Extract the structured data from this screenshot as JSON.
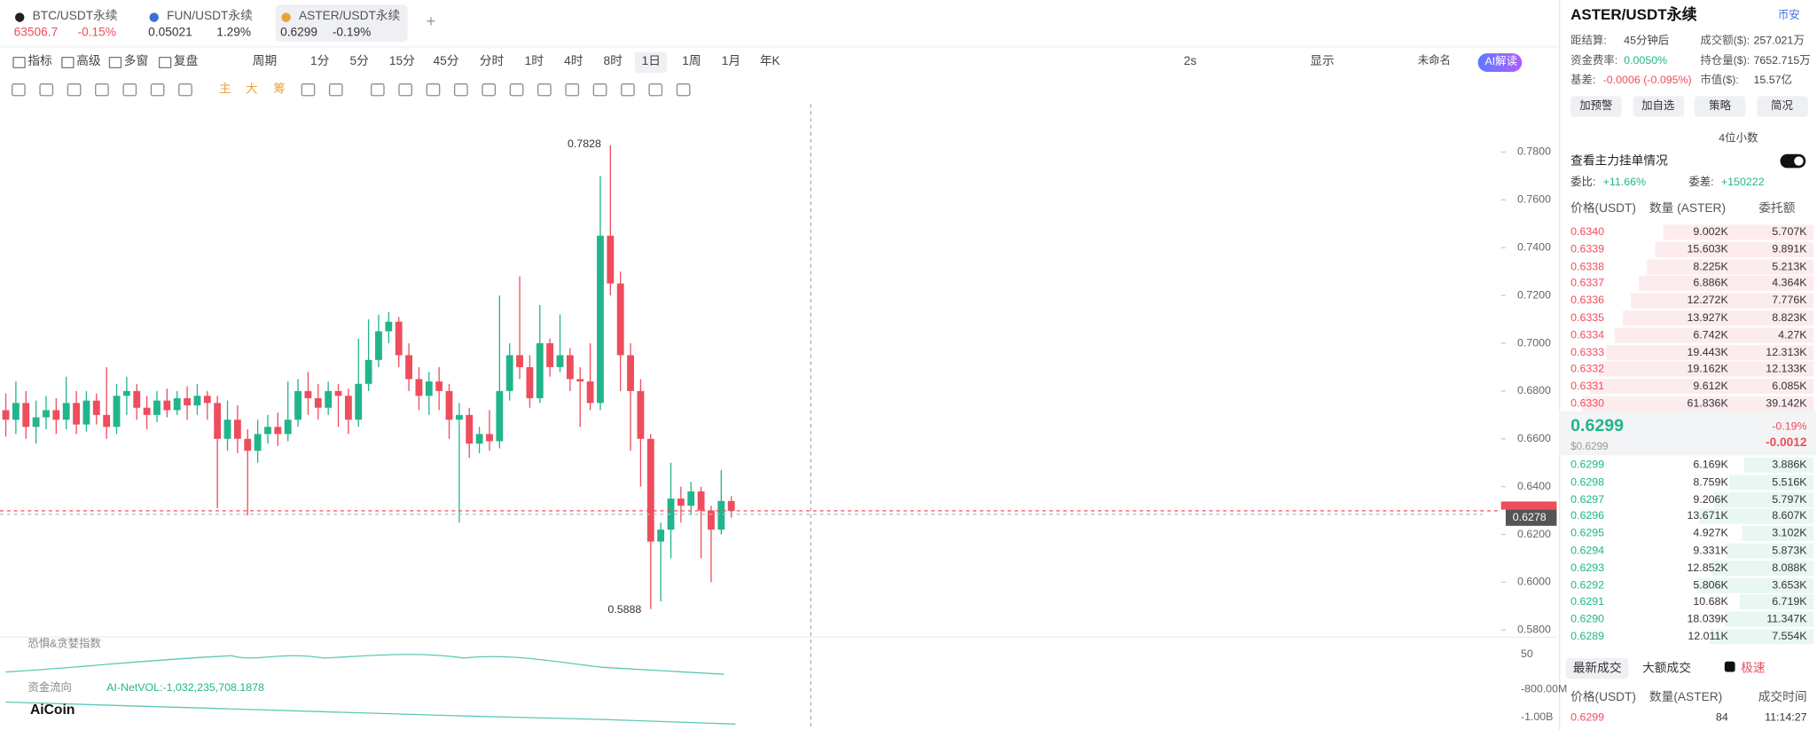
{
  "tabs": [
    {
      "symbol": "BTC/USDT永续",
      "price": "63506.7",
      "change": "-0.15%"
    },
    {
      "symbol": "FUN/USDT永续",
      "price": "0.05021",
      "change": "1.29%"
    },
    {
      "symbol": "ASTER/USDT永续",
      "price": "0.6299",
      "change": "-0.19%"
    }
  ],
  "toolbar": {
    "left": [
      "指标",
      "高级",
      "多窗",
      "复盘"
    ],
    "intervals": [
      "周期",
      "1分",
      "5分",
      "15分",
      "45分",
      "分时",
      "1时",
      "4时",
      "8时",
      "1日",
      "1周",
      "1月",
      "年K"
    ],
    "refresh": "2s",
    "display": "显示",
    "layout": "未命名",
    "ai": "AI解读",
    "overlays": [
      "主",
      "大",
      "筹"
    ]
  },
  "chart_data": {
    "type": "candlestick",
    "up_color": "#22b58b",
    "down_color": "#ee4d5d",
    "open": [
      0.672,
      0.668,
      0.675,
      0.665,
      0.669,
      0.672,
      0.668,
      0.675,
      0.666,
      0.676,
      0.67,
      0.665,
      0.678,
      0.68,
      0.673,
      0.67,
      0.676,
      0.672,
      0.677,
      0.674,
      0.678,
      0.675,
      0.66,
      0.668,
      0.66,
      0.655,
      0.662,
      0.665,
      0.662,
      0.668,
      0.68,
      0.677,
      0.673,
      0.68,
      0.678,
      0.668,
      0.683,
      0.693,
      0.705,
      0.709,
      0.695,
      0.685,
      0.678,
      0.684,
      0.68,
      0.668,
      0.67,
      0.658,
      0.662,
      0.659,
      0.68,
      0.695,
      0.69,
      0.677,
      0.7,
      0.69,
      0.695,
      0.685,
      0.684,
      0.675,
      0.745,
      0.725,
      0.695,
      0.68,
      0.66,
      0.617,
      0.622,
      0.635,
      0.632,
      0.638,
      0.63,
      0.622,
      0.634
    ],
    "high": [
      0.679,
      0.684,
      0.68,
      0.676,
      0.678,
      0.677,
      0.686,
      0.68,
      0.68,
      0.679,
      0.69,
      0.683,
      0.686,
      0.683,
      0.678,
      0.68,
      0.681,
      0.68,
      0.682,
      0.683,
      0.68,
      0.678,
      0.676,
      0.674,
      0.664,
      0.668,
      0.67,
      0.671,
      0.684,
      0.685,
      0.688,
      0.683,
      0.684,
      0.683,
      0.681,
      0.702,
      0.71,
      0.712,
      0.713,
      0.711,
      0.7,
      0.69,
      0.688,
      0.69,
      0.683,
      0.675,
      0.673,
      0.665,
      0.672,
      0.72,
      0.7,
      0.728,
      0.695,
      0.716,
      0.702,
      0.712,
      0.698,
      0.69,
      0.7,
      0.77,
      0.7828,
      0.73,
      0.7,
      0.685,
      0.662,
      0.625,
      0.65,
      0.64,
      0.642,
      0.64,
      0.632,
      0.647,
      0.636
    ],
    "low": [
      0.661,
      0.662,
      0.66,
      0.658,
      0.664,
      0.662,
      0.664,
      0.662,
      0.663,
      0.666,
      0.66,
      0.662,
      0.67,
      0.668,
      0.664,
      0.667,
      0.669,
      0.67,
      0.668,
      0.67,
      0.668,
      0.631,
      0.655,
      0.654,
      0.628,
      0.65,
      0.658,
      0.657,
      0.659,
      0.665,
      0.67,
      0.668,
      0.67,
      0.665,
      0.662,
      0.665,
      0.68,
      0.69,
      0.7,
      0.69,
      0.68,
      0.672,
      0.67,
      0.672,
      0.66,
      0.625,
      0.652,
      0.654,
      0.655,
      0.656,
      0.676,
      0.685,
      0.673,
      0.675,
      0.686,
      0.688,
      0.68,
      0.665,
      0.672,
      0.672,
      0.72,
      0.68,
      0.655,
      0.64,
      0.5888,
      0.592,
      0.61,
      0.625,
      0.628,
      0.61,
      0.6,
      0.62,
      0.627
    ],
    "close": [
      0.668,
      0.675,
      0.665,
      0.669,
      0.672,
      0.668,
      0.675,
      0.666,
      0.676,
      0.67,
      0.665,
      0.678,
      0.68,
      0.673,
      0.67,
      0.676,
      0.672,
      0.677,
      0.674,
      0.678,
      0.675,
      0.66,
      0.668,
      0.66,
      0.655,
      0.662,
      0.665,
      0.662,
      0.668,
      0.68,
      0.677,
      0.673,
      0.68,
      0.678,
      0.668,
      0.683,
      0.693,
      0.705,
      0.709,
      0.695,
      0.685,
      0.678,
      0.684,
      0.68,
      0.668,
      0.67,
      0.658,
      0.662,
      0.659,
      0.68,
      0.695,
      0.69,
      0.677,
      0.7,
      0.69,
      0.695,
      0.685,
      0.684,
      0.675,
      0.745,
      0.725,
      0.695,
      0.68,
      0.66,
      0.617,
      0.622,
      0.635,
      0.632,
      0.638,
      0.63,
      0.622,
      0.634,
      0.6299
    ],
    "ylim": [
      0.577,
      0.8
    ],
    "yticks": [
      {
        "value": 0.78,
        "label": "0.7800"
      },
      {
        "value": 0.76,
        "label": "0.7600"
      },
      {
        "value": 0.74,
        "label": "0.7400"
      },
      {
        "value": 0.72,
        "label": "0.7200"
      },
      {
        "value": 0.7,
        "label": "0.7000"
      },
      {
        "value": 0.68,
        "label": "0.6800"
      },
      {
        "value": 0.66,
        "label": "0.6600"
      },
      {
        "value": 0.64,
        "label": "0.6400"
      },
      {
        "value": 0.62,
        "label": "0.6200"
      },
      {
        "value": 0.6,
        "label": "0.6000"
      },
      {
        "value": 0.58,
        "label": "0.5800"
      }
    ],
    "annotations": [
      "0.7828",
      "0.5888"
    ],
    "crosshair_label": "0.6278",
    "indicators": [
      "恐惧&贪婪指数",
      "资金流向"
    ],
    "netvol": "AI-NetVOL:-1,032,235,708.1878",
    "indicator_axis": [
      "50",
      "-800.00M",
      "-1.00B"
    ],
    "logo": "AiCoin"
  },
  "right_panel": {
    "symbol": "ASTER/USDT永续",
    "exchange": "币安",
    "stats": [
      {
        "label": "距结算:",
        "value": "45分钟后"
      },
      {
        "label": "成交额($):",
        "value": "257.021万"
      },
      {
        "label": "资金费率:",
        "value": "0.0050%"
      },
      {
        "label": "持仓量($):",
        "value": "7652.715万"
      },
      {
        "label": "基差:",
        "value": "-0.0006 (-0.095%)"
      },
      {
        "label": "市值($):",
        "value": "15.57亿"
      }
    ],
    "buttons": [
      "加预警",
      "加自选",
      "策略",
      "简况"
    ],
    "precision": "4位小数",
    "main_orders": "查看主力挂单情况",
    "ratio": {
      "label": "委比:",
      "value": "+11.66%"
    },
    "diff": {
      "label": "委差:",
      "value": "+150222"
    },
    "book_headers": [
      "价格(USDT)",
      "数量 (ASTER)",
      "委托额"
    ],
    "asks": [
      [
        "0.6340",
        "9.002K",
        "5.707K"
      ],
      [
        "0.6339",
        "15.603K",
        "9.891K"
      ],
      [
        "0.6338",
        "8.225K",
        "5.213K"
      ],
      [
        "0.6337",
        "6.886K",
        "4.364K"
      ],
      [
        "0.6336",
        "12.272K",
        "7.776K"
      ],
      [
        "0.6335",
        "13.927K",
        "8.823K"
      ],
      [
        "0.6334",
        "6.742K",
        "4.27K"
      ],
      [
        "0.6333",
        "19.443K",
        "12.313K"
      ],
      [
        "0.6332",
        "19.162K",
        "12.133K"
      ],
      [
        "0.6331",
        "9.612K",
        "6.085K"
      ],
      [
        "0.6330",
        "61.836K",
        "39.142K"
      ]
    ],
    "mid": {
      "price": "0.6299",
      "usd": "$0.6299",
      "change_pct": "-0.19%",
      "change": "-0.0012"
    },
    "bids": [
      [
        "0.6299",
        "6.169K",
        "3.886K"
      ],
      [
        "0.6298",
        "8.759K",
        "5.516K"
      ],
      [
        "0.6297",
        "9.206K",
        "5.797K"
      ],
      [
        "0.6296",
        "13.671K",
        "8.607K"
      ],
      [
        "0.6295",
        "4.927K",
        "3.102K"
      ],
      [
        "0.6294",
        "9.331K",
        "5.873K"
      ],
      [
        "0.6293",
        "12.852K",
        "8.088K"
      ],
      [
        "0.6292",
        "5.806K",
        "3.653K"
      ],
      [
        "0.6291",
        "10.68K",
        "6.719K"
      ],
      [
        "0.6290",
        "18.039K",
        "11.347K"
      ],
      [
        "0.6289",
        "12.011K",
        "7.554K"
      ]
    ],
    "trade_tabs": [
      "最新成交",
      "大额成交",
      "极速"
    ],
    "trade_headers": [
      "价格(USDT)",
      "数量(ASTER)",
      "成交时间"
    ],
    "trades": [
      [
        "0.6299",
        "84",
        "11:14:27"
      ]
    ]
  }
}
